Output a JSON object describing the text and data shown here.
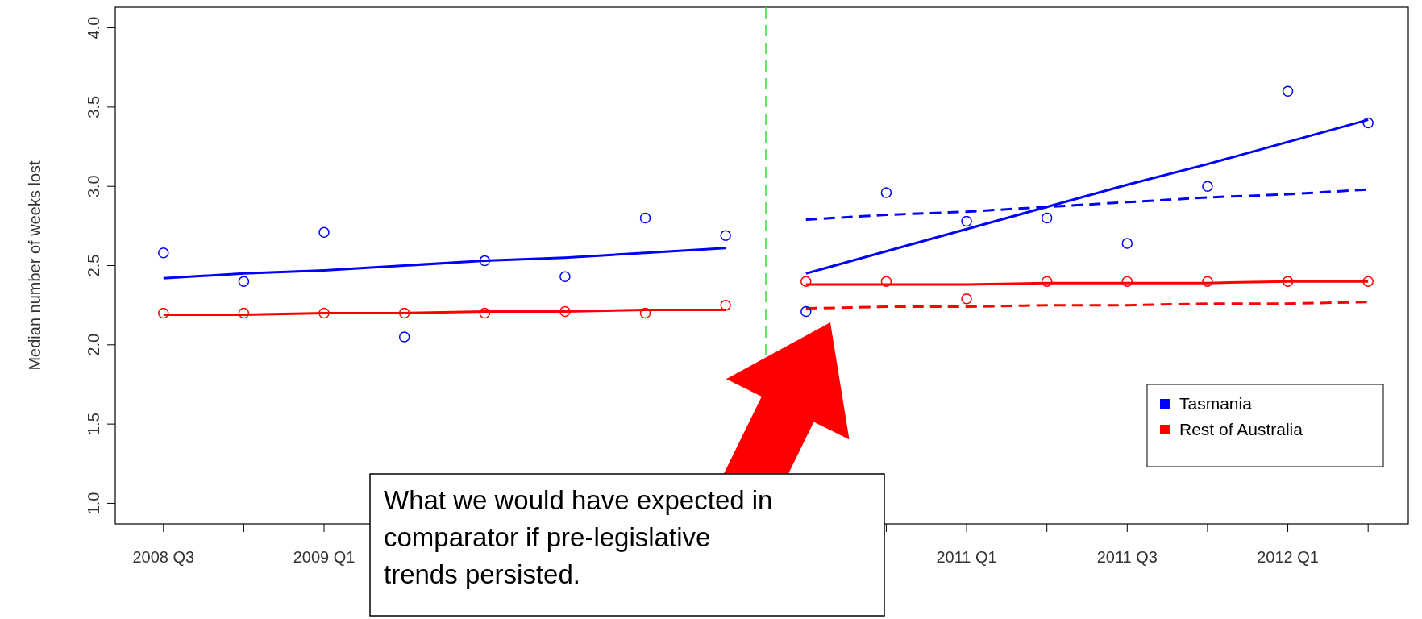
{
  "chart_data": {
    "type": "scatter",
    "ylabel": "Median number of weeks lost",
    "categories": [
      "2008 Q3",
      null,
      "2009 Q1",
      null,
      null,
      null,
      null,
      null,
      null,
      null,
      "2011 Q1",
      null,
      "2011 Q3",
      null,
      "2012 Q1",
      null
    ],
    "series": [
      {
        "name": "Tasmania",
        "color": "#0000ff",
        "marker": "circle",
        "values": [
          2.58,
          2.4,
          2.71,
          2.05,
          2.53,
          2.43,
          2.8,
          2.69,
          2.21,
          2.96,
          2.78,
          2.8,
          2.64,
          3.0,
          3.6,
          3.4
        ]
      },
      {
        "name": "Rest of Australia",
        "color": "#ff0000",
        "marker": "circle",
        "values": [
          2.2,
          2.2,
          2.2,
          2.2,
          2.2,
          2.21,
          2.2,
          2.25,
          2.4,
          2.4,
          2.29,
          2.4,
          2.4,
          2.4,
          2.4,
          2.4
        ]
      },
      {
        "type": "line",
        "color": "#0000ff",
        "line_style": "solid",
        "values": [
          2.42,
          2.45,
          2.47,
          2.5,
          2.53,
          2.55,
          2.58,
          2.61,
          null,
          null,
          null,
          null,
          null,
          null,
          null,
          null
        ]
      },
      {
        "type": "line",
        "color": "#0000ff",
        "line_style": "solid",
        "values": [
          null,
          null,
          null,
          null,
          null,
          null,
          null,
          null,
          2.45,
          2.59,
          2.73,
          2.87,
          3.01,
          3.14,
          3.28,
          3.42
        ]
      },
      {
        "type": "line",
        "color": "#0000ff",
        "line_style": "dashed",
        "values": [
          null,
          null,
          null,
          null,
          null,
          null,
          null,
          null,
          2.79,
          2.82,
          2.84,
          2.87,
          2.9,
          2.93,
          2.95,
          2.98
        ]
      },
      {
        "type": "line",
        "color": "#ff0000",
        "line_style": "solid",
        "values": [
          2.19,
          2.19,
          2.2,
          2.2,
          2.21,
          2.21,
          2.22,
          2.22,
          null,
          null,
          null,
          null,
          null,
          null,
          null,
          null
        ]
      },
      {
        "type": "line",
        "color": "#ff0000",
        "line_style": "solid",
        "values": [
          null,
          null,
          null,
          null,
          null,
          null,
          null,
          null,
          2.38,
          2.38,
          2.38,
          2.39,
          2.39,
          2.39,
          2.4,
          2.4
        ]
      },
      {
        "type": "line",
        "color": "#ff0000",
        "line_style": "dashed",
        "values": [
          null,
          null,
          null,
          null,
          null,
          null,
          null,
          null,
          2.23,
          2.24,
          2.24,
          2.25,
          2.25,
          2.26,
          2.26,
          2.27
        ]
      }
    ],
    "ylim": [
      0.87,
      4.13
    ],
    "yticks": [
      {
        "value": 1,
        "label": "1.0"
      },
      {
        "value": 1.5,
        "label": "1.5"
      },
      {
        "value": 2,
        "label": "2.0"
      },
      {
        "value": 2.5,
        "label": "2.5"
      },
      {
        "value": 3,
        "label": "3.0"
      },
      {
        "value": 3.5,
        "label": "3.5"
      },
      {
        "value": 4,
        "label": "4.0"
      }
    ],
    "legend": "bottom right",
    "grid": false,
    "annotations": [
      "What we would have expected in comparator if pre-legislative trends persisted."
    ]
  }
}
